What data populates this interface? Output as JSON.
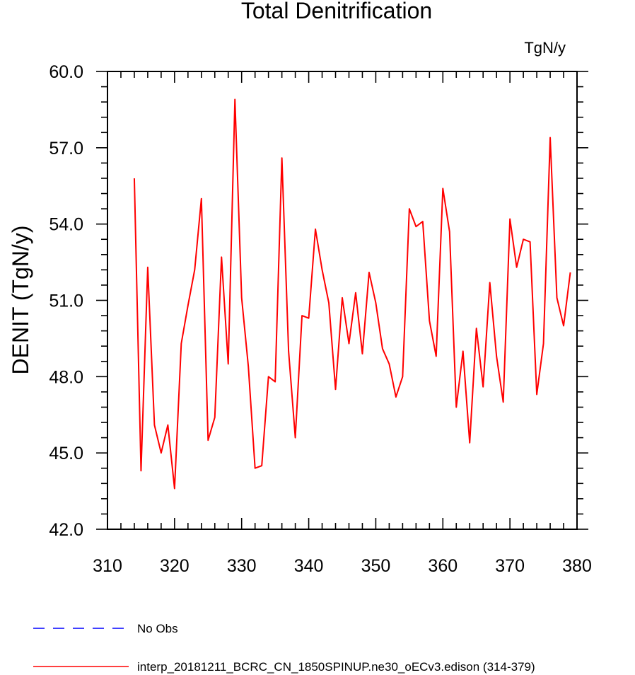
{
  "chart_data": {
    "type": "line",
    "title": "Total Denitrification",
    "units_label": "TgN/y",
    "xlabel": "",
    "ylabel": "DENIT  (TgN/y)",
    "xlim": [
      310,
      380
    ],
    "ylim": [
      42.0,
      60.0
    ],
    "xticks": [
      310,
      320,
      330,
      340,
      350,
      360,
      370,
      380
    ],
    "xtick_labels": [
      "310",
      "320",
      "330",
      "340",
      "350",
      "360",
      "370",
      "380"
    ],
    "yticks": [
      42.0,
      45.0,
      48.0,
      51.0,
      54.0,
      57.0,
      60.0
    ],
    "ytick_labels": [
      "42.0",
      "45.0",
      "48.0",
      "51.0",
      "54.0",
      "57.0",
      "60.0"
    ],
    "grid": false,
    "legend_position": "bottom",
    "series": [
      {
        "name": "interp_20181211_BCRC_CN_1850SPINUP.ne30_oECv3.edison (314-379)",
        "color": "#ff0000",
        "style": "solid",
        "x": [
          314,
          315,
          316,
          317,
          318,
          319,
          320,
          321,
          322,
          323,
          324,
          325,
          326,
          327,
          328,
          329,
          330,
          331,
          332,
          333,
          334,
          335,
          336,
          337,
          338,
          339,
          340,
          341,
          342,
          343,
          344,
          345,
          346,
          347,
          348,
          349,
          350,
          351,
          352,
          353,
          354,
          355,
          356,
          357,
          358,
          359,
          360,
          361,
          362,
          363,
          364,
          365,
          366,
          367,
          368,
          369,
          370,
          371,
          372,
          373,
          374,
          375,
          376,
          377,
          378,
          379
        ],
        "values": [
          55.8,
          44.3,
          52.3,
          46.1,
          45.0,
          46.1,
          43.6,
          49.3,
          50.8,
          52.2,
          55.0,
          45.5,
          46.4,
          52.7,
          48.5,
          58.9,
          51.1,
          48.4,
          44.4,
          44.5,
          48.0,
          47.8,
          56.6,
          49.0,
          45.6,
          50.4,
          50.3,
          53.8,
          52.2,
          50.9,
          47.5,
          51.1,
          49.3,
          51.3,
          48.9,
          52.1,
          50.9,
          49.1,
          48.5,
          47.2,
          48.0,
          54.6,
          53.9,
          54.1,
          50.2,
          48.8,
          55.4,
          53.7,
          46.8,
          49.0,
          45.4,
          49.9,
          47.6,
          51.7,
          48.8,
          47.0,
          54.2,
          52.3,
          53.4,
          53.3,
          47.3,
          49.3,
          57.4,
          51.1,
          50.0,
          52.1
        ]
      },
      {
        "name": "No Obs",
        "color": "#0000ff",
        "style": "dashed",
        "x": [],
        "values": []
      }
    ]
  }
}
